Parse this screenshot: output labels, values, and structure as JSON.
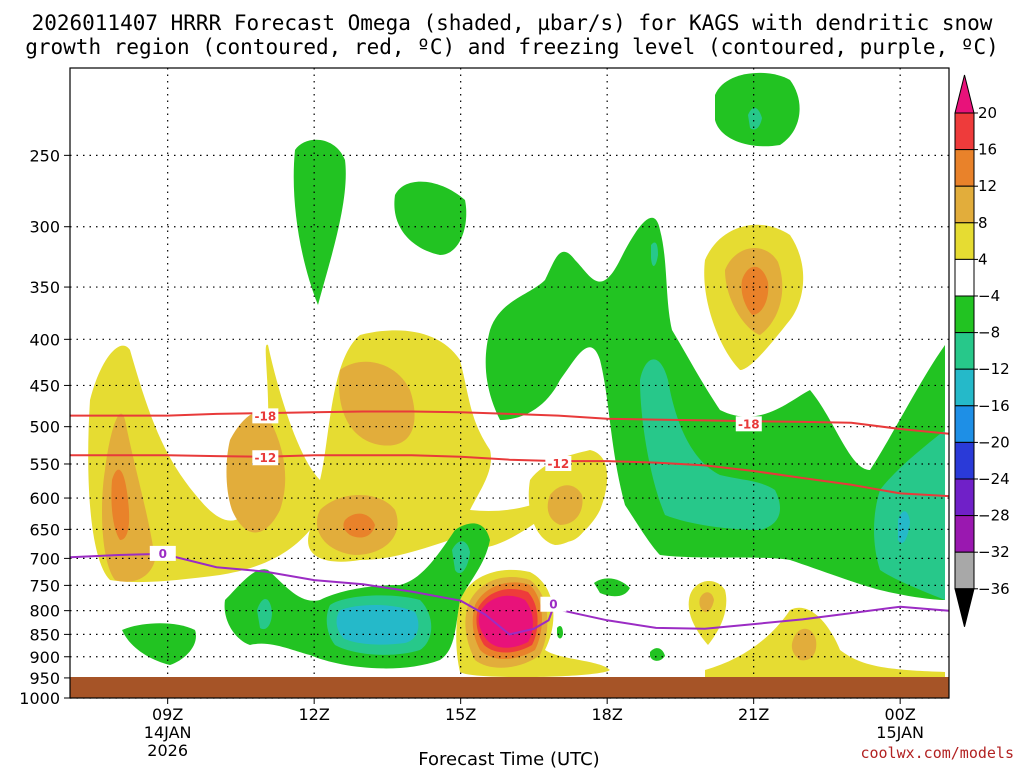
{
  "chart_data": {
    "type": "time-height contour",
    "title_line1": "2026011407 HRRR Forecast Omega (shaded, µbar/s) for KAGS with dendritic snow",
    "title_line2": "growth region (contoured, red, ºC) and freezing level (contoured, purple, ºC)",
    "xlabel": "Forecast Time (UTC)",
    "watermark": "coolwx.com/models",
    "x_ticks": [
      {
        "hour": 9,
        "label": "09Z",
        "sub1": "14JAN",
        "sub2": "2026"
      },
      {
        "hour": 12,
        "label": "12Z",
        "sub1": "",
        "sub2": ""
      },
      {
        "hour": 15,
        "label": "15Z",
        "sub1": "",
        "sub2": ""
      },
      {
        "hour": 18,
        "label": "18Z",
        "sub1": "",
        "sub2": ""
      },
      {
        "hour": 21,
        "label": "21Z",
        "sub1": "",
        "sub2": ""
      },
      {
        "hour": 24,
        "label": "00Z",
        "sub1": "15JAN",
        "sub2": ""
      }
    ],
    "x_range_hours": [
      7,
      25
    ],
    "y_ticks_hPa": [
      250,
      300,
      350,
      400,
      450,
      500,
      550,
      600,
      650,
      700,
      750,
      800,
      850,
      900,
      950,
      1000
    ],
    "y_range_hPa": [
      200,
      1000
    ],
    "colorbar": {
      "labels": [
        "20",
        "16",
        "12",
        "8",
        "4",
        "−4",
        "−8",
        "−12",
        "−16",
        "−20",
        "−24",
        "−28",
        "−32",
        "−36"
      ],
      "bins": [
        {
          "range": ">20",
          "color": "#e8127a"
        },
        {
          "range": "16 to 20",
          "color": "#ee3b3b"
        },
        {
          "range": "12 to 16",
          "color": "#e9822a"
        },
        {
          "range": "8 to 12",
          "color": "#e2ad3b"
        },
        {
          "range": "4 to 8",
          "color": "#e6dc32"
        },
        {
          "range": "-4 to 4",
          "color": "#ffffff"
        },
        {
          "range": "-8 to -4",
          "color": "#22c322"
        },
        {
          "range": "-12 to -8",
          "color": "#27c88a"
        },
        {
          "range": "-16 to -12",
          "color": "#25b9c9"
        },
        {
          "range": "-20 to -16",
          "color": "#1e8fe6"
        },
        {
          "range": "-24 to -20",
          "color": "#2a3ad8"
        },
        {
          "range": "-28 to -24",
          "color": "#7020c8"
        },
        {
          "range": "-32 to -28",
          "color": "#9a18b0"
        },
        {
          "range": "-36 to -32",
          "color": "#a8a8a8"
        },
        {
          "range": "<-36",
          "color": "#000000"
        }
      ]
    },
    "contours": [
      {
        "name": "dgz-minus18",
        "label": "-18",
        "color": "#e83a3a",
        "points": [
          [
            7,
            486
          ],
          [
            9,
            486
          ],
          [
            10,
            484
          ],
          [
            11,
            483
          ],
          [
            12,
            482
          ],
          [
            13,
            481
          ],
          [
            14,
            481
          ],
          [
            15,
            482
          ],
          [
            16,
            484
          ],
          [
            17,
            486
          ],
          [
            18,
            490
          ],
          [
            19,
            491
          ],
          [
            20,
            492
          ],
          [
            21,
            493
          ],
          [
            22,
            494
          ],
          [
            23,
            495
          ],
          [
            24,
            503
          ],
          [
            25,
            509
          ]
        ],
        "label_at": [
          [
            11,
            487
          ],
          [
            20.9,
            497
          ]
        ]
      },
      {
        "name": "dgz-minus12",
        "label": "-12",
        "color": "#e83a3a",
        "points": [
          [
            7,
            538
          ],
          [
            9,
            538
          ],
          [
            10,
            539
          ],
          [
            11,
            540
          ],
          [
            12,
            538
          ],
          [
            13,
            538
          ],
          [
            14,
            538
          ],
          [
            15,
            540
          ],
          [
            16,
            544
          ],
          [
            17,
            546
          ],
          [
            18,
            546
          ],
          [
            19,
            548
          ],
          [
            20,
            552
          ],
          [
            21,
            560
          ],
          [
            22,
            570
          ],
          [
            23,
            580
          ],
          [
            24,
            593
          ],
          [
            25,
            597
          ]
        ],
        "label_at": [
          [
            11,
            542
          ],
          [
            17,
            550
          ]
        ]
      },
      {
        "name": "freezing-level-0",
        "label": "0",
        "color": "#9b2cc4",
        "points": [
          [
            7,
            698
          ],
          [
            8,
            694
          ],
          [
            8.9,
            692
          ],
          [
            10,
            716
          ],
          [
            11,
            724
          ],
          [
            12,
            740
          ],
          [
            13,
            748
          ],
          [
            14,
            762
          ],
          [
            15,
            780
          ],
          [
            15.5,
            808
          ],
          [
            16,
            850
          ],
          [
            16.5,
            838
          ],
          [
            16.8,
            820
          ],
          [
            16.9,
            793
          ],
          [
            17.1,
            800
          ],
          [
            18,
            820
          ],
          [
            19,
            836
          ],
          [
            20,
            838
          ],
          [
            21,
            828
          ],
          [
            22,
            818
          ],
          [
            23,
            805
          ],
          [
            24,
            792
          ],
          [
            25,
            800
          ]
        ],
        "label_at": [
          [
            8.9,
            692
          ],
          [
            16.9,
            788
          ]
        ]
      }
    ],
    "shaded_regions": [
      {
        "category": "4 to 8",
        "description": "upward motion lobe left, 450-800 hPa near 08Z"
      },
      {
        "category": "12 to 16",
        "description": "core near 08Z 600-650 hPa"
      },
      {
        "category": ">20",
        "description": "max near 16Z 850 hPa"
      },
      {
        "category": "-12 to -8",
        "description": "downward motion near 13Z 850-900 hPa"
      }
    ]
  }
}
